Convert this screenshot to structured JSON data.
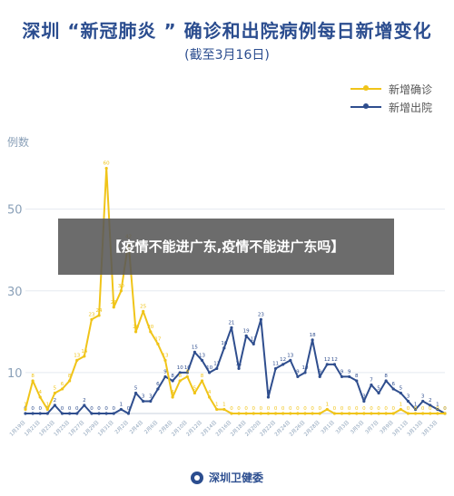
{
  "colors": {
    "confirmed": "#f0c419",
    "discharged": "#2f4e8e",
    "axis": "#8aa0b8",
    "grid": "#e5eaf0"
  },
  "chart_data": {
    "type": "line",
    "title": "深圳 “新冠肺炎 ” 确诊和出院病例每日新增变化",
    "subtitle": "(截至3月16日)",
    "ylabel": "例数",
    "ylim": [
      0,
      65
    ],
    "yticks": [
      10,
      30,
      50
    ],
    "grid": true,
    "legend_position": "top-right",
    "x": [
      "1月19日",
      "1月20日",
      "1月21日",
      "1月22日",
      "1月23日",
      "1月24日",
      "1月25日",
      "1月26日",
      "1月27日",
      "1月28日",
      "1月29日",
      "1月30日",
      "1月31日",
      "2月1日",
      "2月2日",
      "2月3日",
      "2月4日",
      "2月5日",
      "2月6日",
      "2月7日",
      "2月8日",
      "2月9日",
      "2月10日",
      "2月11日",
      "2月12日",
      "2月13日",
      "2月14日",
      "2月15日",
      "2月16日",
      "2月17日",
      "2月18日",
      "2月19日",
      "2月20日",
      "2月21日",
      "2月22日",
      "2月23日",
      "2月24日",
      "2月25日",
      "2月26日",
      "2月27日",
      "2月28日",
      "2月29日",
      "3月1日",
      "3月2日",
      "3月3日",
      "3月4日",
      "3月5日",
      "3月6日",
      "3月7日",
      "3月8日",
      "3月9日",
      "3月10日",
      "3月11日",
      "3月12日",
      "3月13日",
      "3月14日",
      "3月15日",
      "3月16日"
    ],
    "xtick_labels": [
      "1月19日",
      "1月21日",
      "1月23日",
      "1月25日",
      "1月27日",
      "1月29日",
      "1月31日",
      "2月2日",
      "2月4日",
      "2月6日",
      "2月8日",
      "2月10日",
      "2月12日",
      "2月14日",
      "2月16日",
      "2月18日",
      "2月20日",
      "2月22日",
      "2月24日",
      "2月26日",
      "2月28日",
      "3月1日",
      "3月3日",
      "3月5日",
      "3月7日",
      "3月9日",
      "3月11日",
      "3月13日",
      "3月15日"
    ],
    "series": [
      {
        "name": "新增确诊",
        "values": [
          1,
          8,
          4,
          1,
          5,
          6,
          8,
          13,
          14,
          23,
          24,
          60,
          26,
          30,
          42,
          20,
          25,
          20,
          17,
          13,
          4,
          8,
          9,
          5,
          8,
          4,
          1,
          1,
          0,
          0,
          0,
          0,
          0,
          0,
          0,
          0,
          0,
          0,
          0,
          0,
          0,
          1,
          0,
          0,
          0,
          0,
          0,
          0,
          0,
          0,
          0,
          1,
          0,
          0,
          0,
          0,
          0,
          0
        ]
      },
      {
        "name": "新增出院",
        "values": [
          0,
          0,
          0,
          0,
          2,
          0,
          0,
          0,
          2,
          0,
          0,
          0,
          0,
          1,
          0,
          5,
          3,
          3,
          6,
          9,
          8,
          10,
          10,
          15,
          13,
          10,
          11,
          16,
          21,
          11,
          19,
          17,
          23,
          4,
          11,
          12,
          13,
          9,
          10,
          18,
          9,
          12,
          12,
          9,
          9,
          8,
          3,
          7,
          5,
          8,
          6,
          5,
          3,
          1,
          3,
          2,
          1,
          0
        ]
      }
    ]
  },
  "overlay": {
    "text": "【疫情不能进广东,疫情不能进广东吗】"
  },
  "footer": {
    "text": "深圳卫健委"
  }
}
